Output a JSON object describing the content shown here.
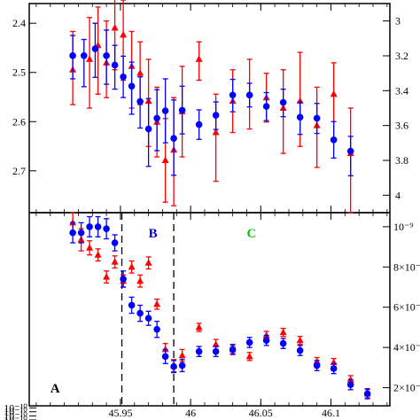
{
  "chart_data": [
    {
      "type": "scatter",
      "panel": "top",
      "xlim": [
        45.885,
        46.142
      ],
      "ylim_left": [
        2.36,
        2.785
      ],
      "ylim_right": [
        2.9,
        4.1
      ],
      "left_axis_inverted": true,
      "right_axis_inverted": true,
      "left_ticks": [
        "2.4",
        "2.5",
        "2.6",
        "2.7"
      ],
      "right_ticks": [
        "3",
        "3.2",
        "3.4",
        "3.6",
        "3.8",
        "4"
      ],
      "series": [
        {
          "color": "#ff0000",
          "marker": "triangle",
          "axis": "right",
          "points": [
            {
              "x": 45.916,
              "y": 3.28,
              "lo": 3.06,
              "hi": 3.48
            },
            {
              "x": 45.928,
              "y": 3.22,
              "lo": 2.98,
              "hi": 3.5
            },
            {
              "x": 45.934,
              "y": 3.14,
              "lo": 2.92,
              "hi": 3.42
            },
            {
              "x": 45.94,
              "y": 3.24,
              "lo": 3.0,
              "hi": 3.44
            },
            {
              "x": 45.946,
              "y": 3.04,
              "lo": 2.82,
              "hi": 3.28
            },
            {
              "x": 45.952,
              "y": 3.08,
              "lo": 2.88,
              "hi": 3.34
            },
            {
              "x": 45.958,
              "y": 3.26,
              "lo": 3.06,
              "hi": 3.5
            },
            {
              "x": 45.964,
              "y": 3.3,
              "lo": 3.12,
              "hi": 3.48
            },
            {
              "x": 45.97,
              "y": 3.46,
              "lo": 3.22,
              "hi": 3.72
            },
            {
              "x": 45.976,
              "y": 3.58,
              "lo": 3.38,
              "hi": 3.78
            },
            {
              "x": 45.982,
              "y": 3.8,
              "lo": 3.56,
              "hi": 4.04
            },
            {
              "x": 45.988,
              "y": 3.74,
              "lo": 3.44,
              "hi": 4.06
            },
            {
              "x": 45.994,
              "y": 3.52,
              "lo": 3.26,
              "hi": 3.78
            },
            {
              "x": 46.006,
              "y": 3.22,
              "lo": 3.12,
              "hi": 3.34
            },
            {
              "x": 46.018,
              "y": 3.64,
              "lo": 3.42,
              "hi": 3.92
            },
            {
              "x": 46.03,
              "y": 3.46,
              "lo": 3.28,
              "hi": 3.64
            },
            {
              "x": 46.042,
              "y": 3.42,
              "lo": 3.22,
              "hi": 3.62
            },
            {
              "x": 46.054,
              "y": 3.44,
              "lo": 3.3,
              "hi": 3.58
            },
            {
              "x": 46.066,
              "y": 3.5,
              "lo": 3.28,
              "hi": 3.76
            },
            {
              "x": 46.078,
              "y": 3.46,
              "lo": 3.18,
              "hi": 3.72
            },
            {
              "x": 46.09,
              "y": 3.6,
              "lo": 3.38,
              "hi": 3.84
            },
            {
              "x": 46.102,
              "y": 3.42,
              "lo": 3.24,
              "hi": 3.68
            },
            {
              "x": 46.114,
              "y": 3.76,
              "lo": 3.5,
              "hi": 4.1
            }
          ]
        },
        {
          "color": "#0000ff",
          "marker": "circle",
          "axis": "left",
          "points": [
            {
              "x": 45.916,
              "y": 2.466,
              "lo": 2.425,
              "hi": 2.513
            },
            {
              "x": 45.924,
              "y": 2.466,
              "lo": 2.433,
              "hi": 2.529
            },
            {
              "x": 45.932,
              "y": 2.452,
              "lo": 2.4,
              "hi": 2.51
            },
            {
              "x": 45.94,
              "y": 2.466,
              "lo": 2.414,
              "hi": 2.524
            },
            {
              "x": 45.946,
              "y": 2.485,
              "lo": 2.445,
              "hi": 2.534
            },
            {
              "x": 45.952,
              "y": 2.509,
              "lo": 2.467,
              "hi": 2.551
            },
            {
              "x": 45.958,
              "y": 2.528,
              "lo": 2.479,
              "hi": 2.585
            },
            {
              "x": 45.964,
              "y": 2.559,
              "lo": 2.509,
              "hi": 2.613
            },
            {
              "x": 45.97,
              "y": 2.615,
              "lo": 2.553,
              "hi": 2.691
            },
            {
              "x": 45.976,
              "y": 2.593,
              "lo": 2.535,
              "hi": 2.659
            },
            {
              "x": 45.982,
              "y": 2.578,
              "lo": 2.513,
              "hi": 2.643
            },
            {
              "x": 45.988,
              "y": 2.634,
              "lo": 2.556,
              "hi": 2.709
            },
            {
              "x": 45.994,
              "y": 2.577,
              "lo": 2.528,
              "hi": 2.625
            },
            {
              "x": 46.006,
              "y": 2.606,
              "lo": 2.576,
              "hi": 2.636
            },
            {
              "x": 46.018,
              "y": 2.587,
              "lo": 2.56,
              "hi": 2.616
            },
            {
              "x": 46.03,
              "y": 2.546,
              "lo": 2.514,
              "hi": 2.58
            },
            {
              "x": 46.042,
              "y": 2.546,
              "lo": 2.522,
              "hi": 2.57
            },
            {
              "x": 46.054,
              "y": 2.569,
              "lo": 2.541,
              "hi": 2.598
            },
            {
              "x": 46.066,
              "y": 2.561,
              "lo": 2.534,
              "hi": 2.59
            },
            {
              "x": 46.078,
              "y": 2.591,
              "lo": 2.56,
              "hi": 2.626
            },
            {
              "x": 46.09,
              "y": 2.593,
              "lo": 2.563,
              "hi": 2.624
            },
            {
              "x": 46.102,
              "y": 2.637,
              "lo": 2.6,
              "hi": 2.674
            },
            {
              "x": 46.114,
              "y": 2.66,
              "lo": 2.63,
              "hi": 2.71
            }
          ]
        }
      ]
    },
    {
      "type": "scatter",
      "panel": "bottom",
      "xlim": [
        45.885,
        46.142
      ],
      "x_ticks": [
        "45.95",
        "46",
        "46.05",
        "46.1"
      ],
      "x_tick_values": [
        45.95,
        46.0,
        46.05,
        46.1
      ],
      "left_ticks": [
        "10⁻¹⁰",
        "10⁻¹⁰",
        "10⁻¹⁰",
        "10⁻¹⁰",
        "10⁻¹⁰"
      ],
      "right_ticks": [
        "10⁻⁹",
        "8×10⁻",
        "6×10⁻",
        "4×10⁻",
        "2×10⁻"
      ],
      "ylim_right": [
        1.1e-09,
        1.07e-08
      ],
      "left_axis_scale": 5.41e-10,
      "regions": [
        {
          "label": "A",
          "color": "#000000"
        },
        {
          "label": "B",
          "color": "#0000cc"
        },
        {
          "label": "C",
          "color": "#00cc00"
        }
      ],
      "region_boundaries": [
        45.951,
        45.988
      ],
      "series": [
        {
          "color": "#ff0000",
          "marker": "triangle",
          "axis": "right",
          "points": [
            {
              "x": 45.916,
              "y": 1.02e-08,
              "lo": 9.7e-09,
              "hi": 1.07e-08
            },
            {
              "x": 45.922,
              "y": 9.35e-09,
              "lo": 8.8e-09,
              "hi": 9.9e-09
            },
            {
              "x": 45.928,
              "y": 8.95e-09,
              "lo": 8.6e-09,
              "hi": 9.3e-09
            },
            {
              "x": 45.934,
              "y": 8.6e-09,
              "lo": 8.3e-09,
              "hi": 8.9e-09
            },
            {
              "x": 45.94,
              "y": 7.5e-09,
              "lo": 7.2e-09,
              "hi": 7.8e-09
            },
            {
              "x": 45.946,
              "y": 8.25e-09,
              "lo": 7.95e-09,
              "hi": 8.55e-09
            },
            {
              "x": 45.952,
              "y": 7.3e-09,
              "lo": 7e-09,
              "hi": 7.6e-09
            },
            {
              "x": 45.958,
              "y": 8e-09,
              "lo": 7.7e-09,
              "hi": 8.3e-09
            },
            {
              "x": 45.964,
              "y": 7.3e-09,
              "lo": 7e-09,
              "hi": 7.6e-09
            },
            {
              "x": 45.97,
              "y": 8.2e-09,
              "lo": 7.9e-09,
              "hi": 8.5e-09
            },
            {
              "x": 45.976,
              "y": 6.15e-09,
              "lo": 5.9e-09,
              "hi": 6.4e-09
            },
            {
              "x": 45.982,
              "y": 3.9e-09,
              "lo": 3.6e-09,
              "hi": 4.2e-09
            },
            {
              "x": 45.988,
              "y": 3.1e-09,
              "lo": 2.8e-09,
              "hi": 3.4e-09
            },
            {
              "x": 45.994,
              "y": 3.6e-09,
              "lo": 3.3e-09,
              "hi": 3.9e-09
            },
            {
              "x": 46.006,
              "y": 5e-09,
              "lo": 4.8e-09,
              "hi": 5.2e-09
            },
            {
              "x": 46.018,
              "y": 4.15e-09,
              "lo": 3.9e-09,
              "hi": 4.4e-09
            },
            {
              "x": 46.03,
              "y": 3.9e-09,
              "lo": 3.7e-09,
              "hi": 4.1e-09
            },
            {
              "x": 46.042,
              "y": 3.55e-09,
              "lo": 3.35e-09,
              "hi": 3.75e-09
            },
            {
              "x": 46.054,
              "y": 4.6e-09,
              "lo": 4.4e-09,
              "hi": 4.8e-09
            },
            {
              "x": 46.066,
              "y": 4.75e-09,
              "lo": 4.55e-09,
              "hi": 4.95e-09
            },
            {
              "x": 46.078,
              "y": 4.35e-09,
              "lo": 4.15e-09,
              "hi": 4.55e-09
            },
            {
              "x": 46.09,
              "y": 3.3e-09,
              "lo": 3.1e-09,
              "hi": 3.5e-09
            },
            {
              "x": 46.102,
              "y": 3.25e-09,
              "lo": 3.05e-09,
              "hi": 3.45e-09
            },
            {
              "x": 46.114,
              "y": 2.4e-09,
              "lo": 2.2e-09,
              "hi": 2.6e-09
            },
            {
              "x": 46.126,
              "y": 1.7e-09,
              "lo": 1.5e-09,
              "hi": 1.9e-09
            }
          ]
        },
        {
          "color": "#0000ff",
          "marker": "circle",
          "axis": "right",
          "points": [
            {
              "x": 45.916,
              "y": 9.7e-09,
              "lo": 9.2e-09,
              "hi": 1.02e-08
            },
            {
              "x": 45.922,
              "y": 9.7e-09,
              "lo": 9.2e-09,
              "hi": 1.02e-08
            },
            {
              "x": 45.928,
              "y": 1e-08,
              "lo": 9.5e-09,
              "hi": 1.05e-08
            },
            {
              "x": 45.934,
              "y": 1e-08,
              "lo": 9.5e-09,
              "hi": 1.05e-08
            },
            {
              "x": 45.94,
              "y": 9.9e-09,
              "lo": 9.4e-09,
              "hi": 1.04e-08
            },
            {
              "x": 45.946,
              "y": 9.2e-09,
              "lo": 8.8e-09,
              "hi": 9.6e-09
            },
            {
              "x": 45.952,
              "y": 7.4e-09,
              "lo": 7e-09,
              "hi": 7.8e-09
            },
            {
              "x": 45.958,
              "y": 6.1e-09,
              "lo": 5.7e-09,
              "hi": 6.5e-09
            },
            {
              "x": 45.964,
              "y": 5.7e-09,
              "lo": 5.3e-09,
              "hi": 6.1e-09
            },
            {
              "x": 45.97,
              "y": 5.45e-09,
              "lo": 5.1e-09,
              "hi": 5.8e-09
            },
            {
              "x": 45.976,
              "y": 4.9e-09,
              "lo": 4.5e-09,
              "hi": 5.3e-09
            },
            {
              "x": 45.982,
              "y": 3.55e-09,
              "lo": 3.2e-09,
              "hi": 3.9e-09
            },
            {
              "x": 45.988,
              "y": 3.05e-09,
              "lo": 2.75e-09,
              "hi": 3.35e-09
            },
            {
              "x": 45.994,
              "y": 3.1e-09,
              "lo": 2.8e-09,
              "hi": 3.4e-09
            },
            {
              "x": 46.006,
              "y": 3.8e-09,
              "lo": 3.55e-09,
              "hi": 4.05e-09
            },
            {
              "x": 46.018,
              "y": 3.8e-09,
              "lo": 3.55e-09,
              "hi": 4.05e-09
            },
            {
              "x": 46.03,
              "y": 3.9e-09,
              "lo": 3.65e-09,
              "hi": 4.15e-09
            },
            {
              "x": 46.042,
              "y": 4.25e-09,
              "lo": 4e-09,
              "hi": 4.5e-09
            },
            {
              "x": 46.054,
              "y": 4.35e-09,
              "lo": 4.1e-09,
              "hi": 4.6e-09
            },
            {
              "x": 46.066,
              "y": 4.2e-09,
              "lo": 3.95e-09,
              "hi": 4.45e-09
            },
            {
              "x": 46.078,
              "y": 3.85e-09,
              "lo": 3.6e-09,
              "hi": 4.1e-09
            },
            {
              "x": 46.09,
              "y": 3.1e-09,
              "lo": 2.85e-09,
              "hi": 3.35e-09
            },
            {
              "x": 46.102,
              "y": 2.95e-09,
              "lo": 2.7e-09,
              "hi": 3.2e-09
            },
            {
              "x": 46.114,
              "y": 2.15e-09,
              "lo": 1.9e-09,
              "hi": 2.4e-09
            },
            {
              "x": 46.126,
              "y": 1.7e-09,
              "lo": 1.45e-09,
              "hi": 1.95e-09
            }
          ]
        }
      ]
    }
  ]
}
